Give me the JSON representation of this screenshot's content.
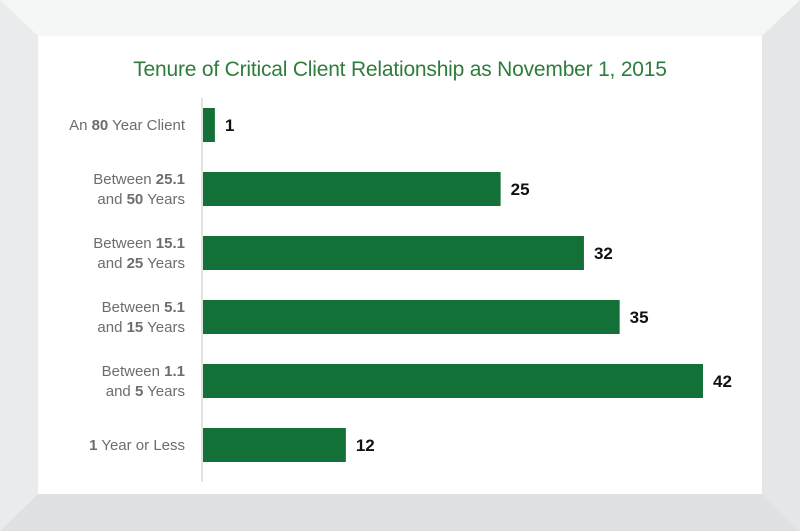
{
  "colors": {
    "bar": "#137138",
    "title": "#2e7d3c",
    "axis": "#c4c4c4",
    "label": "#6d6d6d"
  },
  "chart_data": {
    "type": "bar",
    "orientation": "horizontal",
    "title": "Tenure of Critical Client Relationship as November 1, 2015",
    "xlabel": "",
    "ylabel": "",
    "xlim": [
      0,
      42
    ],
    "grid": false,
    "legend": "none",
    "categories": [
      {
        "lines": [
          [
            {
              "t": "An "
            },
            {
              "t": "80",
              "b": true
            },
            {
              "t": " Year Client"
            }
          ]
        ]
      },
      {
        "lines": [
          [
            {
              "t": "Between "
            },
            {
              "t": "25.1",
              "b": true
            }
          ],
          [
            {
              "t": "and "
            },
            {
              "t": "50",
              "b": true
            },
            {
              "t": " Years"
            }
          ]
        ]
      },
      {
        "lines": [
          [
            {
              "t": "Between "
            },
            {
              "t": "15.1",
              "b": true
            }
          ],
          [
            {
              "t": "and "
            },
            {
              "t": "25",
              "b": true
            },
            {
              "t": " Years"
            }
          ]
        ]
      },
      {
        "lines": [
          [
            {
              "t": "Between "
            },
            {
              "t": "5.1",
              "b": true
            }
          ],
          [
            {
              "t": "and "
            },
            {
              "t": "15",
              "b": true
            },
            {
              "t": " Years"
            }
          ]
        ]
      },
      {
        "lines": [
          [
            {
              "t": "Between "
            },
            {
              "t": "1.1",
              "b": true
            }
          ],
          [
            {
              "t": "and "
            },
            {
              "t": "5",
              "b": true
            },
            {
              "t": " Years"
            }
          ]
        ]
      },
      {
        "lines": [
          [
            {
              "t": "1",
              "b": true
            },
            {
              "t": " Year or Less"
            }
          ]
        ]
      }
    ],
    "values": [
      1,
      25,
      32,
      35,
      42,
      12
    ]
  }
}
